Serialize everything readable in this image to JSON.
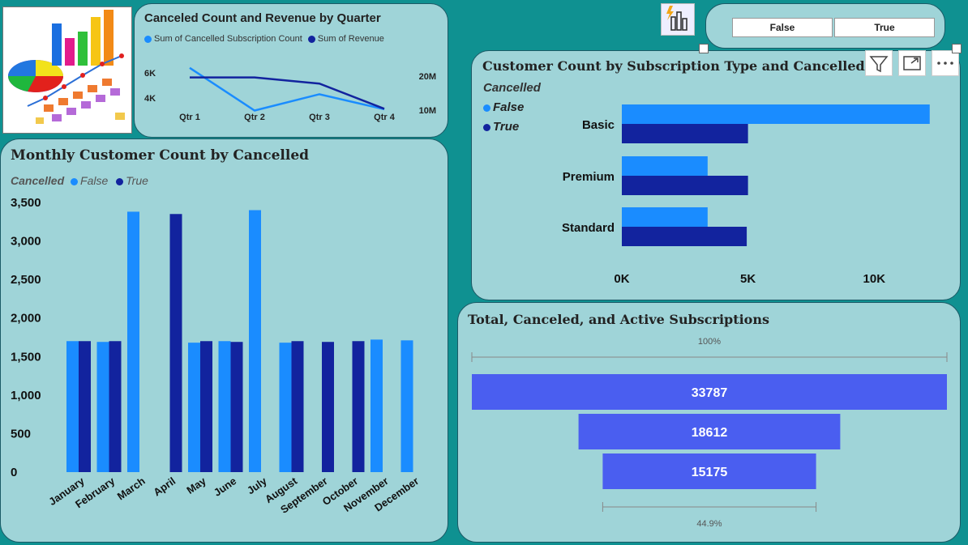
{
  "colors": {
    "false_series": "#1a8cff",
    "true_series": "#12239e",
    "funnel": "#4a5ef0",
    "panel": "#9fd4d8",
    "background": "#0f9191"
  },
  "slicer": {
    "options": [
      "False",
      "True"
    ]
  },
  "quarter_chart": {
    "title": "Canceled Count and Revenue by Quarter",
    "legend": [
      "Sum of Cancelled Subscription Count",
      "Sum of Revenue"
    ]
  },
  "monthly_chart": {
    "title": "Monthly Customer Count by Cancelled",
    "legend_title": "Cancelled",
    "legend": [
      "False",
      "True"
    ]
  },
  "subscription_chart": {
    "title": "Customer Count by Subscription Type and Cancelled",
    "legend_title": "Cancelled",
    "legend": [
      "False",
      "True"
    ]
  },
  "funnel_chart": {
    "title": "Total, Canceled, and Active Subscriptions",
    "top_pct": "100%",
    "bottom_pct": "44.9%"
  },
  "chart_data": [
    {
      "type": "line",
      "title": "Canceled Count and Revenue by Quarter",
      "categories": [
        "Qtr 1",
        "Qtr 2",
        "Qtr 3",
        "Qtr 4"
      ],
      "series": [
        {
          "name": "Sum of Cancelled Subscription Count",
          "axis": "left",
          "values": [
            6400,
            3000,
            4300,
            3100
          ]
        },
        {
          "name": "Sum of Revenue",
          "axis": "right",
          "values": [
            19600000,
            19600000,
            17800000,
            10400000
          ]
        }
      ],
      "y_left_ticks": [
        "6K",
        "4K"
      ],
      "y_left_tick_values": [
        6000,
        4000
      ],
      "y_right_ticks": [
        "20M",
        "10M"
      ],
      "y_right_tick_values": [
        20000000,
        10000000
      ]
    },
    {
      "type": "bar",
      "title": "Monthly Customer Count by Cancelled",
      "categories": [
        "January",
        "February",
        "March",
        "April",
        "May",
        "June",
        "July",
        "August",
        "September",
        "October",
        "November",
        "December"
      ],
      "series": [
        {
          "name": "False",
          "values": [
            1700,
            1690,
            3380,
            null,
            1680,
            1700,
            3400,
            1680,
            null,
            null,
            1720,
            1710
          ]
        },
        {
          "name": "True",
          "values": [
            1700,
            1700,
            null,
            3350,
            1700,
            1690,
            null,
            1700,
            1690,
            1700,
            null,
            null
          ]
        }
      ],
      "ylim": [
        0,
        3500
      ],
      "y_ticks": [
        "0",
        "500",
        "1,000",
        "1,500",
        "2,000",
        "2,500",
        "3,000",
        "3,500"
      ],
      "y_tick_values": [
        0,
        500,
        1000,
        1500,
        2000,
        2500,
        3000,
        3500
      ]
    },
    {
      "type": "bar",
      "orientation": "horizontal",
      "title": "Customer Count by Subscription Type and Cancelled",
      "categories": [
        "Basic",
        "Premium",
        "Standard"
      ],
      "series": [
        {
          "name": "False",
          "values": [
            12200,
            3400,
            3400
          ]
        },
        {
          "name": "True",
          "values": [
            5000,
            5000,
            4950
          ]
        }
      ],
      "xlim": [
        0,
        12400
      ],
      "x_ticks": [
        "0K",
        "5K",
        "10K"
      ],
      "x_tick_values": [
        0,
        5000,
        10000
      ]
    },
    {
      "type": "funnel",
      "title": "Total, Canceled, and Active Subscriptions",
      "values": [
        33787,
        18612,
        15175
      ],
      "labels": [
        "33787",
        "18612",
        "15175"
      ]
    }
  ]
}
